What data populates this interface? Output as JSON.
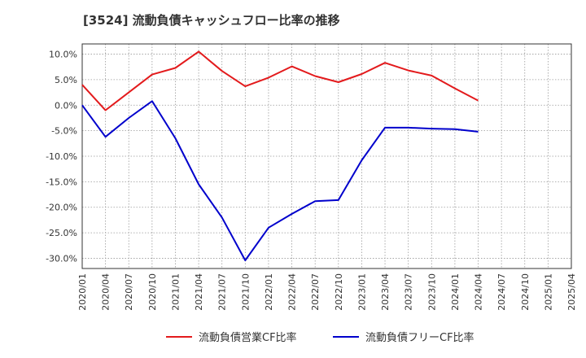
{
  "chart_data": {
    "type": "line",
    "title": "[3524]  流動負債キャッシュフロー比率の推移",
    "xlabel": "",
    "ylabel": "",
    "x": [
      "2020/01",
      "2020/04",
      "2020/07",
      "2020/10",
      "2021/01",
      "2021/04",
      "2021/07",
      "2021/10",
      "2022/01",
      "2022/04",
      "2022/07",
      "2022/10",
      "2023/01",
      "2023/04",
      "2023/07",
      "2023/10",
      "2024/01",
      "2024/04",
      "2024/07",
      "2024/10",
      "2025/01",
      "2025/04"
    ],
    "ylim": [
      -32,
      12
    ],
    "yticks": [
      10,
      5,
      0,
      -5,
      -10,
      -15,
      -20,
      -25,
      -30
    ],
    "ytick_labels": [
      "10.0%",
      "5.0%",
      "0.0%",
      "-5.0%",
      "-10.0%",
      "-15.0%",
      "-20.0%",
      "-25.0%",
      "-30.0%"
    ],
    "grid": true,
    "legend_position": "bottom",
    "series": [
      {
        "name": "流動負債営業CF比率",
        "color": "#e31a1c",
        "values": [
          4.0,
          -1.0,
          2.5,
          6.0,
          7.3,
          10.5,
          6.7,
          3.7,
          5.4,
          7.6,
          5.7,
          4.5,
          6.1,
          8.3,
          6.8,
          5.8,
          3.3,
          0.9,
          null,
          null,
          null,
          null
        ]
      },
      {
        "name": "流動負債フリーCF比率",
        "color": "#0000cc",
        "values": [
          0.0,
          -6.2,
          -2.5,
          0.8,
          -6.5,
          -15.5,
          -22.0,
          -30.4,
          -24.0,
          -21.3,
          -18.8,
          -18.6,
          -10.8,
          -4.4,
          -4.4,
          -4.6,
          -4.7,
          -5.2,
          null,
          null,
          null,
          null
        ]
      }
    ]
  }
}
